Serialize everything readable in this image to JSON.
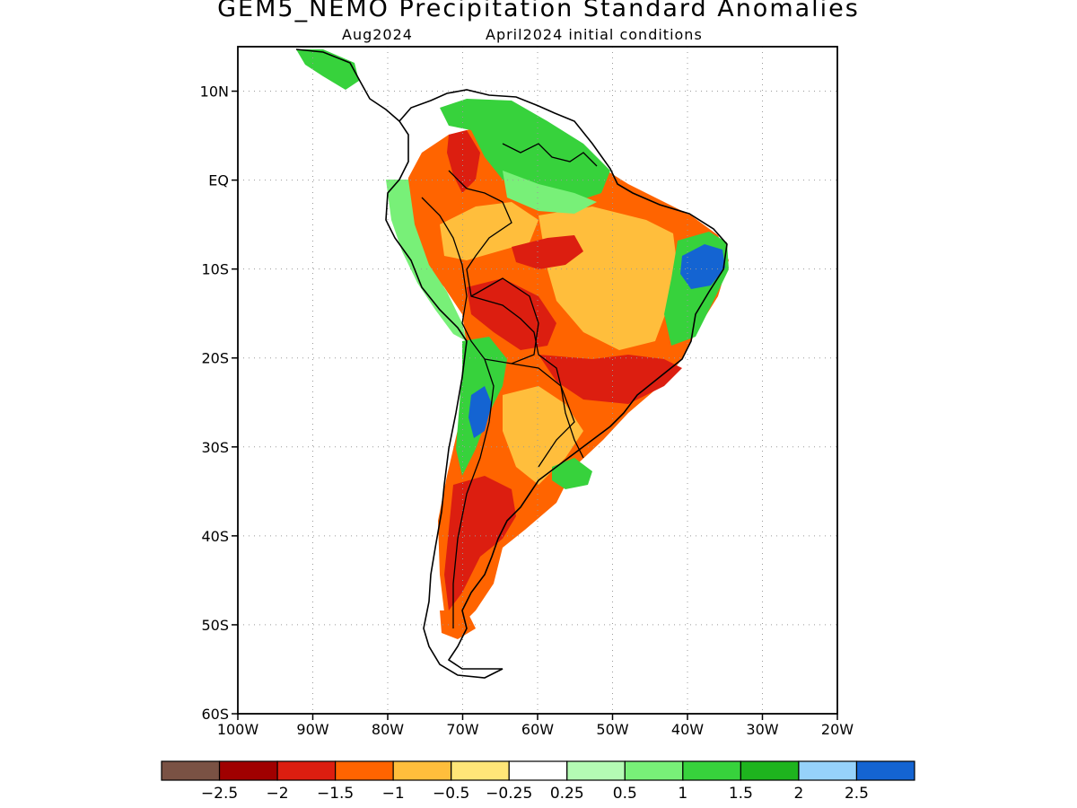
{
  "title": "GEM5_NEMO Precipitation Standard Anomalies",
  "subtitle_left": "Aug2024",
  "subtitle_right": "April2024 initial conditions",
  "map": {
    "lon_range": [
      -100,
      -20
    ],
    "lat_range": [
      -60,
      15
    ],
    "lon_ticks": [
      "100W",
      "90W",
      "80W",
      "70W",
      "60W",
      "50W",
      "40W",
      "30W",
      "20W"
    ],
    "lat_ticks": [
      "10N",
      "EQ",
      "10S",
      "20S",
      "30S",
      "40S",
      "50S",
      "60S"
    ],
    "grid": "dotted"
  },
  "colorbar": {
    "colors": [
      "#7a5244",
      "#a00000",
      "#dc1e10",
      "#ff6400",
      "#ffbe3c",
      "#ffe678",
      "#ffffff",
      "#b4fab4",
      "#78f078",
      "#37d23c",
      "#1eb41e",
      "#96d2fa",
      "#1464d2"
    ],
    "labels": [
      "-2.5",
      "-2",
      "-1.5",
      "-1",
      "-0.5",
      "-0.25",
      "0.25",
      "0.5",
      "1",
      "1.5",
      "2",
      "2.5"
    ]
  },
  "anomaly_regions": [
    {
      "name": "central-south-america",
      "color": "#ff6400"
    },
    {
      "name": "central-brazil-interior",
      "color": "#ffbe3c"
    },
    {
      "name": "mato-grosso-core",
      "color": "#dc1e10"
    },
    {
      "name": "parana-core",
      "color": "#dc1e10"
    },
    {
      "name": "northeast-brazil-wet",
      "color": "#37d23c"
    },
    {
      "name": "northeast-brazil-core",
      "color": "#1464d2"
    },
    {
      "name": "guianas-wet",
      "color": "#37d23c"
    },
    {
      "name": "andes-wet",
      "color": "#78f078"
    },
    {
      "name": "argentina-dry",
      "color": "#dc1e10"
    },
    {
      "name": "patagonia-dry",
      "color": "#ff6400"
    }
  ]
}
